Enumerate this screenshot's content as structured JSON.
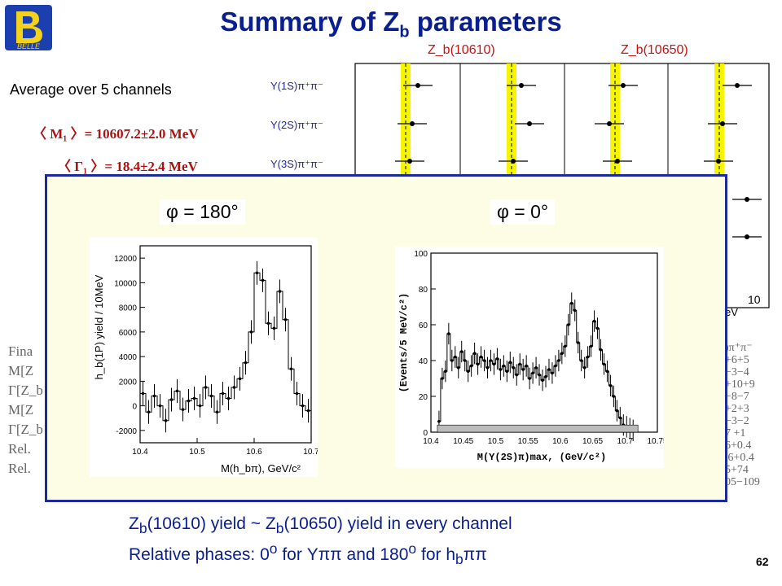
{
  "header": {
    "title_main": "Summary of Z",
    "title_sub": "b",
    "title_end": " parameters",
    "logo_text": "BELLE"
  },
  "left_panel": {
    "average_label": "Average over 5 channels",
    "m1": "〈 M₁ 〉= 10607.2±2.0 MeV",
    "g1": "〈 Γ₁ 〉= 18.4±2.4 MeV",
    "fragment": "〈"
  },
  "top_plot": {
    "headers": [
      "Z_b(10610)",
      "Z_b(10650)"
    ],
    "rows": [
      "Υ(1S)π⁺π⁻",
      "Υ(2S)π⁺π⁻",
      "Υ(3S)π⁺π⁻"
    ],
    "tick_10": "10",
    "unit_frag": "eV"
  },
  "left_table": {
    "rows": [
      "Fina",
      "M[Z",
      "Γ[Z_b",
      "M[Z",
      "Γ[Z_b",
      "Rel.",
      "Rel."
    ]
  },
  "right_table": {
    "rows": [
      ")π⁺π⁻",
      "+6+5",
      "−3−4",
      "+10+9",
      "−8−7",
      "+2+3",
      "−3−2",
      "7 +1",
      "6+0.4",
      ".6+0.4",
      "5+74",
      "05−109"
    ]
  },
  "overlay": {
    "phase_left": "φ = 180°",
    "phase_right": "φ = 0°"
  },
  "chart_data": [
    {
      "type": "scatter",
      "title": "",
      "xlabel": "M(h_bπ), GeV/c²",
      "ylabel": "h_b(1P) yield / 10MeV",
      "xlim": [
        10.4,
        10.7
      ],
      "ylim": [
        -3000,
        13000
      ],
      "xticks": [
        "10.4",
        "10.5",
        "10.6",
        "10.7"
      ],
      "yticks": [
        "12000",
        "10000",
        "8000",
        "6000",
        "4000",
        "2000",
        "0",
        "-2000"
      ],
      "x": [
        10.405,
        10.415,
        10.425,
        10.435,
        10.445,
        10.455,
        10.465,
        10.475,
        10.485,
        10.495,
        10.505,
        10.515,
        10.525,
        10.535,
        10.545,
        10.555,
        10.565,
        10.575,
        10.585,
        10.595,
        10.605,
        10.615,
        10.625,
        10.635,
        10.645,
        10.655,
        10.665,
        10.675,
        10.685,
        10.695
      ],
      "y": [
        1000,
        -500,
        800,
        0,
        -1200,
        500,
        1200,
        -300,
        400,
        600,
        0,
        1500,
        800,
        -500,
        1000,
        600,
        1500,
        2200,
        3500,
        6000,
        10800,
        10200,
        6700,
        6300,
        9300,
        7000,
        3000,
        1000,
        0,
        -400
      ]
    },
    {
      "type": "scatter",
      "title": "",
      "xlabel": "M(Υ(2S)π)max, (GeV/c²)",
      "ylabel": "(Events/5 MeV/c²)",
      "xlim": [
        10.4,
        10.75
      ],
      "ylim": [
        0,
        100
      ],
      "xticks": [
        "10.4",
        "10.45",
        "10.5",
        "10.55",
        "10.6",
        "10.65",
        "10.7",
        "10.75"
      ],
      "yticks": [
        "100",
        "80",
        "60",
        "40",
        "20",
        "0"
      ],
      "x": [
        10.4125,
        10.4175,
        10.4225,
        10.4275,
        10.4325,
        10.4375,
        10.4425,
        10.4475,
        10.4525,
        10.4575,
        10.4625,
        10.4675,
        10.4725,
        10.4775,
        10.4825,
        10.4875,
        10.4925,
        10.4975,
        10.5025,
        10.5075,
        10.5125,
        10.5175,
        10.5225,
        10.5275,
        10.5325,
        10.5375,
        10.5425,
        10.5475,
        10.5525,
        10.5575,
        10.5625,
        10.5675,
        10.5725,
        10.5775,
        10.5825,
        10.5875,
        10.5925,
        10.5975,
        10.6025,
        10.6075,
        10.6125,
        10.6175,
        10.6225,
        10.6275,
        10.6325,
        10.6375,
        10.6425,
        10.6475,
        10.6525,
        10.6575,
        10.6625,
        10.6675,
        10.6725,
        10.6775,
        10.6825,
        10.6875,
        10.6925,
        10.6975,
        10.7025,
        10.7075,
        10.7125
      ],
      "y": [
        6,
        30,
        34,
        55,
        40,
        42,
        36,
        45,
        40,
        34,
        37,
        44,
        38,
        42,
        40,
        36,
        40,
        38,
        41,
        35,
        37,
        34,
        39,
        36,
        32,
        38,
        35,
        37,
        30,
        33,
        36,
        32,
        29,
        31,
        35,
        33,
        37,
        40,
        44,
        48,
        60,
        72,
        68,
        50,
        40,
        36,
        42,
        48,
        62,
        58,
        46,
        38,
        34,
        26,
        20,
        12,
        8,
        4,
        3,
        2,
        1
      ],
      "background_level": 4
    }
  ],
  "footer": {
    "line1_a": "Z",
    "line1_b": "b",
    "line1_c": "(10610) yield ~ Z",
    "line1_d": "b",
    "line1_e": "(10650) yield in every channel",
    "line2_a": "Relative phases: 0",
    "line2_b": "o",
    "line2_c": " for Υππ and 180",
    "line2_d": "o",
    "line2_e": " for h",
    "line2_f": "b",
    "line2_g": "ππ",
    "page_number": "62"
  },
  "colors": {
    "title": "#0a1f8f",
    "param_red": "#b01010",
    "pane_border": "#1c2a9c",
    "pane_bg": "#fdfde6",
    "band_yellow": "#f5f500"
  }
}
